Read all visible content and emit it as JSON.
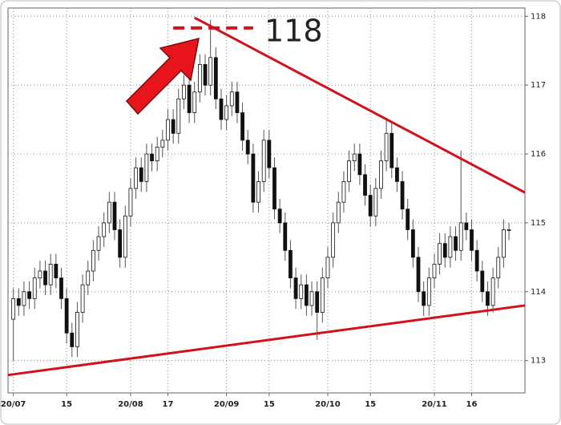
{
  "chart_data": {
    "type": "candlestick",
    "x": [
      0,
      1,
      2,
      3,
      4,
      5,
      6,
      7,
      8,
      9,
      10,
      11,
      12,
      13,
      14,
      15,
      16,
      17,
      18,
      19,
      20,
      21,
      22,
      23,
      24,
      25,
      26,
      27,
      28,
      29,
      30,
      31,
      32,
      33,
      34,
      35,
      36,
      37,
      38,
      39,
      40,
      41,
      42,
      43,
      44,
      45,
      46,
      47,
      48,
      49,
      50,
      51,
      52,
      53,
      54,
      55,
      56,
      57,
      58,
      59,
      60,
      61,
      62,
      63,
      64,
      65,
      66,
      67,
      68,
      69,
      70,
      71,
      72,
      73,
      74,
      75,
      76,
      77,
      78,
      79,
      80,
      81,
      82,
      83,
      84,
      85,
      86,
      87,
      88,
      89,
      90,
      91,
      92,
      93
    ],
    "open": [
      113.6,
      113.9,
      113.8,
      114.0,
      113.9,
      114.2,
      114.3,
      114.1,
      114.4,
      114.2,
      113.9,
      113.4,
      113.2,
      113.7,
      114.1,
      114.3,
      114.6,
      114.8,
      115.0,
      115.3,
      114.9,
      114.5,
      115.1,
      115.5,
      115.8,
      115.6,
      116.0,
      115.9,
      116.1,
      116.2,
      116.5,
      116.3,
      116.8,
      117.0,
      116.6,
      116.9,
      117.3,
      117.0,
      117.4,
      116.8,
      116.5,
      116.7,
      116.9,
      116.6,
      116.2,
      116.0,
      115.3,
      115.6,
      116.2,
      115.8,
      115.2,
      115.0,
      114.6,
      114.2,
      113.9,
      114.1,
      113.8,
      114.0,
      113.7,
      114.2,
      114.5,
      115.0,
      115.3,
      115.6,
      115.9,
      116.0,
      115.7,
      115.4,
      115.1,
      115.5,
      115.9,
      116.3,
      115.8,
      115.6,
      115.2,
      114.9,
      114.5,
      114.0,
      113.8,
      114.2,
      114.4,
      114.7,
      114.5,
      114.8,
      114.6,
      115.0,
      114.9,
      114.6,
      114.3,
      114.0,
      113.8,
      114.2,
      114.5,
      114.9
    ],
    "high": [
      114.05,
      114.05,
      114.15,
      114.15,
      114.35,
      114.45,
      114.45,
      114.55,
      114.55,
      114.35,
      114.05,
      113.55,
      113.85,
      114.25,
      114.45,
      114.75,
      114.95,
      115.15,
      115.45,
      115.45,
      115.05,
      115.25,
      115.65,
      115.95,
      115.95,
      116.15,
      116.15,
      116.25,
      116.35,
      116.65,
      116.65,
      116.95,
      117.15,
      117.15,
      117.05,
      117.45,
      117.45,
      117.95,
      117.55,
      116.95,
      116.85,
      117.05,
      117.05,
      116.75,
      116.35,
      116.15,
      115.75,
      116.35,
      116.35,
      115.95,
      115.35,
      115.15,
      114.75,
      114.35,
      114.25,
      114.25,
      114.15,
      114.15,
      114.35,
      114.65,
      115.15,
      115.45,
      115.75,
      116.05,
      116.15,
      116.15,
      115.85,
      115.55,
      115.65,
      116.05,
      116.5,
      116.45,
      115.95,
      115.75,
      115.35,
      115.05,
      114.65,
      114.15,
      114.35,
      114.55,
      114.85,
      114.85,
      114.95,
      114.95,
      116.05,
      115.15,
      115.05,
      114.75,
      114.45,
      114.15,
      114.35,
      114.65,
      115.05,
      115.0
    ],
    "low": [
      113.0,
      113.65,
      113.65,
      113.75,
      113.75,
      114.05,
      113.95,
      113.95,
      114.05,
      113.75,
      113.25,
      113.05,
      113.05,
      113.55,
      113.95,
      114.15,
      114.45,
      114.65,
      114.85,
      114.75,
      114.35,
      114.35,
      114.95,
      115.35,
      115.45,
      115.45,
      115.75,
      115.75,
      115.95,
      116.05,
      116.15,
      116.15,
      116.65,
      116.45,
      116.45,
      116.75,
      116.85,
      116.85,
      116.65,
      116.35,
      116.35,
      116.55,
      116.45,
      116.05,
      115.85,
      115.15,
      115.15,
      115.45,
      115.65,
      115.05,
      114.85,
      114.45,
      114.05,
      113.75,
      113.75,
      113.65,
      113.65,
      113.3,
      113.55,
      114.05,
      114.35,
      114.85,
      115.15,
      115.45,
      115.75,
      115.55,
      115.25,
      114.95,
      114.95,
      115.35,
      115.75,
      115.65,
      115.45,
      115.05,
      114.75,
      114.35,
      113.85,
      113.65,
      113.65,
      114.05,
      114.25,
      114.35,
      114.35,
      114.45,
      114.45,
      114.75,
      114.45,
      114.15,
      113.85,
      113.65,
      113.7,
      114.05,
      114.35,
      114.75
    ],
    "close": [
      113.9,
      113.8,
      114.0,
      113.9,
      114.2,
      114.3,
      114.1,
      114.4,
      114.2,
      113.9,
      113.4,
      113.2,
      113.7,
      114.1,
      114.3,
      114.6,
      114.8,
      115.0,
      115.3,
      114.9,
      114.5,
      115.1,
      115.5,
      115.8,
      115.6,
      116.0,
      115.9,
      116.1,
      116.2,
      116.5,
      116.3,
      116.8,
      117.0,
      116.6,
      116.9,
      117.3,
      117.0,
      117.4,
      116.8,
      116.5,
      116.7,
      116.9,
      116.6,
      116.2,
      116.0,
      115.3,
      115.6,
      116.2,
      115.8,
      115.2,
      115.0,
      114.6,
      114.2,
      113.9,
      114.1,
      113.8,
      114.0,
      113.7,
      114.2,
      114.5,
      115.0,
      115.3,
      115.6,
      115.9,
      116.0,
      115.7,
      115.4,
      115.1,
      115.5,
      115.9,
      116.3,
      115.8,
      115.6,
      115.2,
      114.9,
      114.5,
      114.0,
      113.8,
      114.2,
      114.4,
      114.7,
      114.5,
      114.8,
      114.6,
      115.0,
      114.9,
      114.6,
      114.3,
      114.0,
      113.8,
      114.2,
      114.5,
      114.9,
      114.9
    ],
    "up_color": "#ffffff",
    "down_color": "#111111",
    "wick_color": "#555555",
    "xlim": [
      -1,
      96
    ],
    "xticks": [
      {
        "value": 0,
        "label": "20/07"
      },
      {
        "value": 10,
        "label": "15"
      },
      {
        "value": 22,
        "label": "20/08"
      },
      {
        "value": 29,
        "label": "17"
      },
      {
        "value": 40,
        "label": "20/09"
      },
      {
        "value": 48,
        "label": "15"
      },
      {
        "value": 59,
        "label": "20/10"
      },
      {
        "value": 67,
        "label": "15"
      },
      {
        "value": 79,
        "label": "20/11"
      },
      {
        "value": 86,
        "label": "16"
      }
    ],
    "ylim": [
      112.53,
      118.12
    ],
    "yticks": [
      113,
      114,
      115,
      116,
      117,
      118
    ],
    "grid": true,
    "trendlines": [
      {
        "color": "#d0121b",
        "x": [
          -1,
          96
        ],
        "y": [
          112.79,
          113.8
        ]
      },
      {
        "color": "#d0121b",
        "x": [
          34,
          96
        ],
        "y": [
          117.98,
          115.44
        ]
      }
    ],
    "level_line": {
      "color": "#d0121b",
      "x": [
        30,
        45
      ],
      "y": 117.83
    },
    "annotation": {
      "text": "118",
      "color": "#d0121b"
    }
  }
}
